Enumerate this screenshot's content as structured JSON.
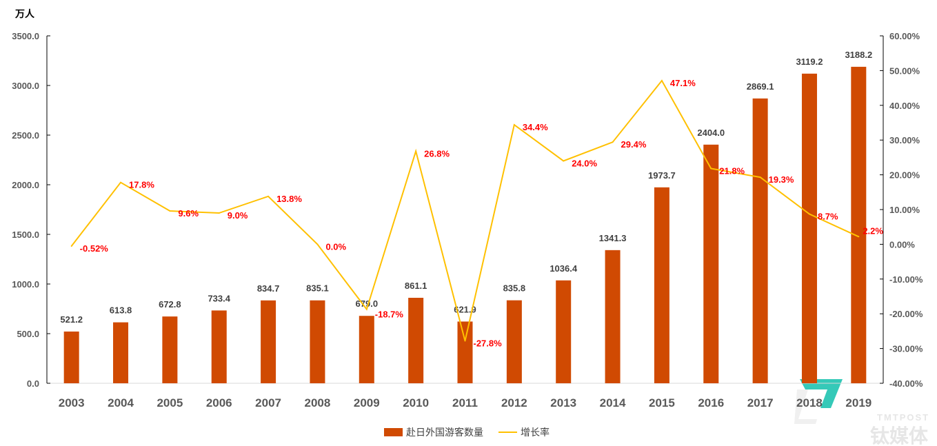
{
  "chart_data": {
    "type": "bar+line",
    "categories": [
      "2003",
      "2004",
      "2005",
      "2006",
      "2007",
      "2008",
      "2009",
      "2010",
      "2011",
      "2012",
      "2013",
      "2014",
      "2015",
      "2016",
      "2017",
      "2018",
      "2019"
    ],
    "series": [
      {
        "name": "赴日外国游客数量",
        "type": "bar",
        "axis": "left",
        "color": "#d04a02",
        "values": [
          521.2,
          613.8,
          672.8,
          733.4,
          834.7,
          835.1,
          679.0,
          861.1,
          621.9,
          835.8,
          1036.4,
          1341.3,
          1973.7,
          2404.0,
          2869.1,
          3119.2,
          3188.2
        ],
        "labels": [
          "521.2",
          "613.8",
          "672.8",
          "733.4",
          "834.7",
          "835.1",
          "679.0",
          "861.1",
          "621.9",
          "835.8",
          "1036.4",
          "1341.3",
          "1973.7",
          "2404.0",
          "2869.1",
          "3119.2",
          "3188.2"
        ]
      },
      {
        "name": "增长率",
        "type": "line",
        "axis": "right",
        "color": "#ffc000",
        "values": [
          -0.52,
          17.8,
          9.6,
          9.0,
          13.8,
          0.0,
          -18.7,
          26.8,
          -27.8,
          34.4,
          24.0,
          29.4,
          47.1,
          21.8,
          19.3,
          8.7,
          2.2
        ],
        "labels": [
          "-0.52%",
          "17.8%",
          "9.6%",
          "9.0%",
          "13.8%",
          "0.0%",
          "-18.7%",
          "26.8%",
          "-27.8%",
          "34.4%",
          "24.0%",
          "29.4%",
          "47.1%",
          "21.8%",
          "19.3%",
          "8.7%",
          "2.2%"
        ]
      }
    ],
    "y_left": {
      "unit_label": "万人",
      "range": [
        0,
        3500
      ],
      "ticks": [
        "0.0",
        "500.0",
        "1000.0",
        "1500.0",
        "2000.0",
        "2500.0",
        "3000.0",
        "3500.0"
      ]
    },
    "y_right": {
      "range": [
        -40,
        60
      ],
      "ticks": [
        "-40.00%",
        "-30.00%",
        "-20.00%",
        "-10.00%",
        "0.00%",
        "10.00%",
        "20.00%",
        "30.00%",
        "40.00%",
        "50.00%",
        "60.00%"
      ]
    },
    "grid": false,
    "legend": "bottom"
  },
  "watermark": {
    "brand": "TMTPOST",
    "brand_cn": "钛媒体",
    "color": "#2ac6b4"
  }
}
